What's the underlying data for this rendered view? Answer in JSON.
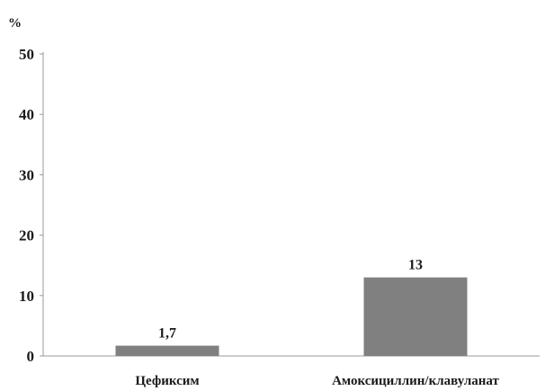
{
  "chart_data": {
    "type": "bar",
    "unit_label": "%",
    "categories": [
      "Цефиксим",
      "Амоксициллин/клавуланат"
    ],
    "values": [
      1.7,
      13
    ],
    "data_labels": [
      "1,7",
      "13"
    ],
    "yticks": [
      "0",
      "10",
      "20",
      "30",
      "40",
      "50"
    ],
    "ylim": [
      0,
      50
    ],
    "bar_color": "#808080",
    "axis_color": "#9a9a9a",
    "grid": false,
    "legend": "none"
  }
}
